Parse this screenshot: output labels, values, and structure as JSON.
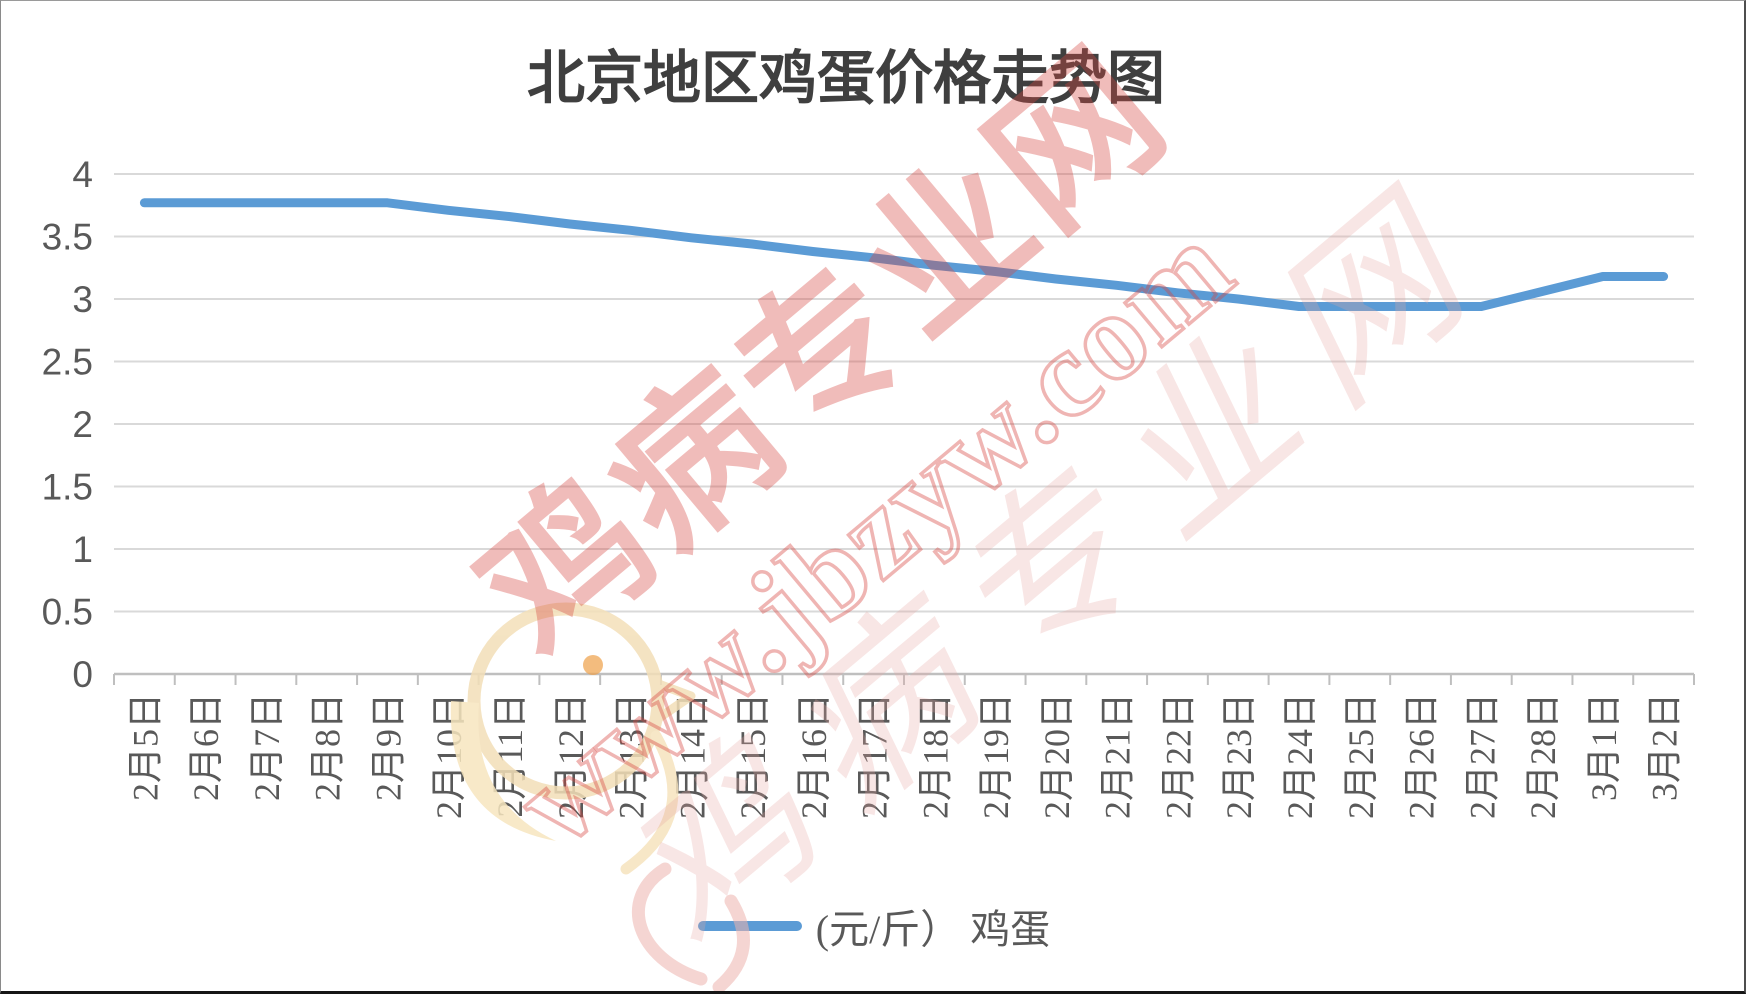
{
  "title": "北京地区鸡蛋价格走势图",
  "chart_data": {
    "type": "line",
    "title": "北京地区鸡蛋价格走势图",
    "categories": [
      "2月5日",
      "2月6日",
      "2月7日",
      "2月8日",
      "2月9日",
      "2月10日",
      "2月11日",
      "2月12日",
      "2月13日",
      "2月14日",
      "2月15日",
      "2月16日",
      "2月17日",
      "2月18日",
      "2月19日",
      "2月20日",
      "2月21日",
      "2月22日",
      "2月23日",
      "2月24日",
      "2月25日",
      "2月26日",
      "2月27日",
      "2月28日",
      "3月1日",
      "3月2日"
    ],
    "series": [
      {
        "name": "(元/斤） 鸡蛋",
        "color": "#5B9BD5",
        "values": [
          3.77,
          3.77,
          3.77,
          3.77,
          3.77,
          3.71,
          3.66,
          3.6,
          3.55,
          3.49,
          3.44,
          3.38,
          3.33,
          3.27,
          3.22,
          3.16,
          3.11,
          3.05,
          3.0,
          2.94,
          2.94,
          2.94,
          2.94,
          3.06,
          3.18,
          3.18
        ]
      }
    ],
    "ylim": [
      0,
      4
    ],
    "ytick_interval": 0.5,
    "ytick_labels": [
      "0",
      "0.5",
      "1",
      "1.5",
      "2",
      "2.5",
      "3",
      "3.5",
      "4"
    ],
    "grid": true,
    "x_label_rotation": -90,
    "legend_position": "bottom"
  },
  "legend": {
    "label": "(元/斤） 鸡蛋"
  },
  "watermark": {
    "brand": "鸡病专业网",
    "url": "www.jbzyw.com"
  },
  "colors": {
    "line": "#5B9BD5",
    "grid": "#D9D9D9",
    "axis": "#BFBFBF",
    "tick_label": "#595959",
    "title": "#3F3F3F",
    "watermark_pink": "#D64541",
    "chick_cream": "#F3DFB8",
    "chick_orange": "#EFA24E"
  }
}
